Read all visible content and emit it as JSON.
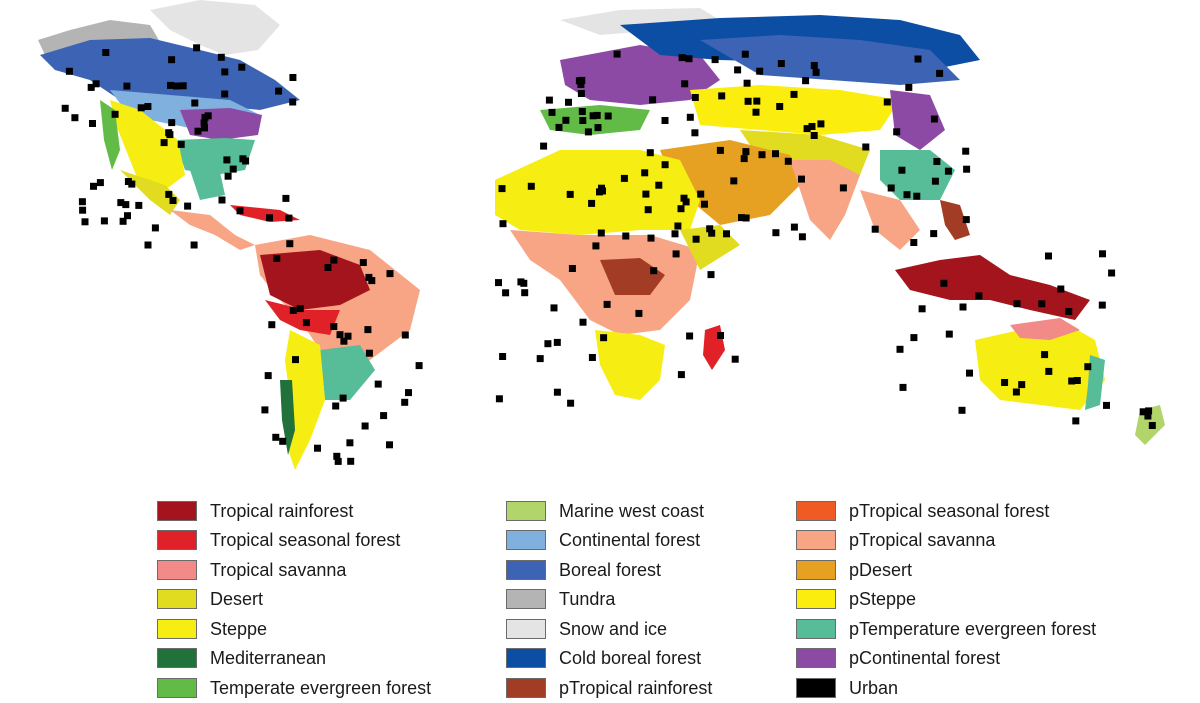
{
  "colors": {
    "tropical_rainforest": "#a3141c",
    "tropical_seasonal_forest": "#e02228",
    "tropical_savanna": "#f28a88",
    "desert": "#e1dc20",
    "steppe": "#f6ee12",
    "mediterranean": "#21713a",
    "temperate_evergreen_forest": "#63bb47",
    "marine_west_coast": "#b1d56b",
    "continental_forest": "#7fb0de",
    "boreal_forest": "#3d64b4",
    "tundra": "#b4b4b4",
    "snow_and_ice": "#e4e4e4",
    "cold_boreal_forest": "#0c4ea3",
    "p_tropical_rainforest": "#a23c24",
    "p_tropical_seasonal_forest": "#f05a23",
    "p_tropical_savanna": "#f7a585",
    "p_desert": "#e6a122",
    "p_steppe": "#fbee0e",
    "p_temperate_evergreen_forest": "#56bd98",
    "p_continental_forest": "#8c4aa5",
    "urban": "#000000"
  },
  "legend": {
    "columns": [
      [
        {
          "label": "Tropical rainforest",
          "color_key": "tropical_rainforest"
        },
        {
          "label": "Tropical seasonal forest",
          "color_key": "tropical_seasonal_forest"
        },
        {
          "label": "Tropical savanna",
          "color_key": "tropical_savanna"
        },
        {
          "label": "Desert",
          "color_key": "desert"
        },
        {
          "label": "Steppe",
          "color_key": "steppe"
        },
        {
          "label": "Mediterranean",
          "color_key": "mediterranean"
        },
        {
          "label": "Temperate evergreen forest",
          "color_key": "temperate_evergreen_forest"
        }
      ],
      [
        {
          "label": "Marine west coast",
          "color_key": "marine_west_coast"
        },
        {
          "label": "Continental forest",
          "color_key": "continental_forest"
        },
        {
          "label": "Boreal forest",
          "color_key": "boreal_forest"
        },
        {
          "label": "Tundra",
          "color_key": "tundra"
        },
        {
          "label": "Snow and ice",
          "color_key": "snow_and_ice"
        },
        {
          "label": "Cold boreal forest",
          "color_key": "cold_boreal_forest"
        },
        {
          "label": "pTropical rainforest",
          "color_key": "p_tropical_rainforest"
        }
      ],
      [
        {
          "label": "pTropical seasonal forest",
          "color_key": "p_tropical_seasonal_forest"
        },
        {
          "label": "pTropical savanna",
          "color_key": "p_tropical_savanna"
        },
        {
          "label": "pDesert",
          "color_key": "p_desert"
        },
        {
          "label": "pSteppe",
          "color_key": "p_steppe"
        },
        {
          "label": "pTemperature evergreen forest",
          "color_key": "p_temperate_evergreen_forest"
        },
        {
          "label": "pContinental forest",
          "color_key": "p_continental_forest"
        },
        {
          "label": "Urban",
          "color_key": "urban"
        }
      ]
    ]
  }
}
